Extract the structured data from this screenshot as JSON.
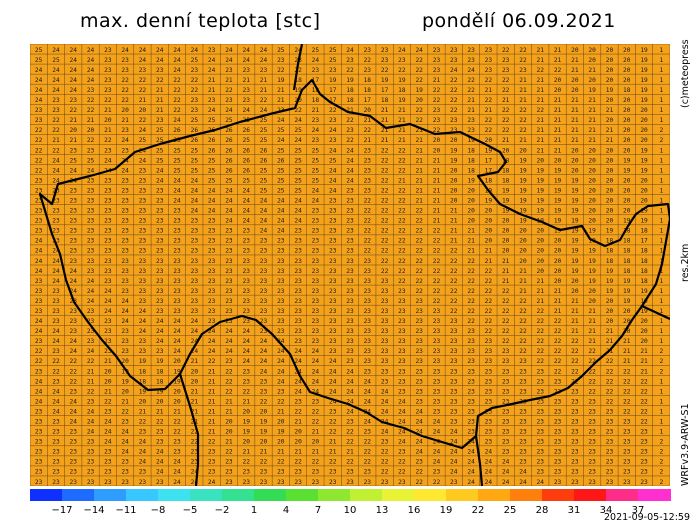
{
  "header": {
    "title": "max. denní teplota [stc]",
    "date": "pondělí 06.09.2021"
  },
  "side_labels": {
    "copyright": "(c)meteopress",
    "resolution": "res.2km",
    "model": "WRFv3.9-ARW-S1"
  },
  "colorbar": {
    "tick_labels": [
      "−17",
      "−14",
      "−11",
      "−8",
      "−5",
      "−2",
      "1",
      "4",
      "7",
      "10",
      "13",
      "16",
      "19",
      "22",
      "25",
      "28",
      "31",
      "34",
      "37"
    ],
    "colors": [
      "#1030ff",
      "#1e6bff",
      "#2f9cff",
      "#38c8ff",
      "#3ce2f0",
      "#39e3c2",
      "#33e190",
      "#32dc55",
      "#5ae030",
      "#8fe830",
      "#bff032",
      "#e8f335",
      "#ffe830",
      "#ffca1f",
      "#ffa812",
      "#ff7f0c",
      "#ff3d0c",
      "#ff1717",
      "#ff2d8a",
      "#ff2fd0"
    ]
  },
  "map": {
    "background": "#f5a21a",
    "grid_color": "#222222",
    "border_color": "#000000",
    "row_values": [
      "25 24 24 24 23 24 24 24 24 24 23 24 24 24 25 24 25 25 24 23 23 24 24 23 23 23 23 22 22 21 21 20 20 20 20 19 1",
      "25 25 24 24 23 23 24 24 24 25 24 24 24 24 23 23 24 25 23 22 23 23 22 23 23 23 23 23 22 21 21 21 20 20 20 19 1",
      "24 24 24 24 23 23 23 23 24 23 24 23 23 23 22 22 23 23 22 23 22 22 22 23 24 24 23 23 23 22 22 21 21 20 20 19 1",
      "24 24 24 24 23 22 22 22 22 22 21 21 21 21 19 18 17 19 19 18 19 19 22 21 22 22 22 22 21 21 20 20 20 20 20 19 1",
      "24 24 24 23 23 22 22 21 22 22 21 22 23 21 21 19 18 17 18 18 17 18 19 22 22 22 21 22 21 21 20 20 19 19 18 19 1",
      "24 23 23 22 22 22 21 21 22 23 23 23 23 22 21 20 18 17 18 17 18 19 20 22 22 21 22 21 21 21 21 21 21 20 20 19 1",
      "23 23 22 22 21 20 20 21 22 23 24 24 24 24 23 22 21 22 21 20 21 21 22 23 22 21 21 22 22 22 21 21 21 21 20 20 1",
      "23 22 21 21 20 21 22 23 24 25 25 25 25 25 24 24 23 23 22 21 21 21 22 23 23 23 22 22 22 21 21 21 21 20 20 20 1",
      "22 22 20 20 21 23 24 25 26 26 26 26 26 25 25 25 24 24 23 22 21 21 21 22 23 23 22 22 22 21 21 21 21 21 20 20 2",
      "22 21 21 22 22 24 25 25 25 26 26 26 25 25 24 24 23 23 22 21 21 21 21 20 20 19 20 21 21 21 21 21 21 21 20 20 2",
      "22 22 23 23 23 23 24 25 25 25 26 26 26 26 25 25 25 24 24 23 22 22 21 20 19 18 19 20 20 21 21 20 20 20 20 19 1",
      "22 24 25 25 24 24 24 25 25 25 25 26 26 26 26 25 25 25 24 23 22 22 21 21 19 18 17 18 19 20 20 20 20 20 19 19 1",
      "22 24 24 24 24 24 23 24 25 25 25 26 26 25 25 25 25 24 24 23 22 22 21 21 20 18 17 18 19 19 19 20 20 20 19 19 1",
      "23 24 24 23 23 23 23 24 24 24 25 25 25 25 25 25 25 24 24 23 22 21 21 21 20 19 18 18 19 19 19 19 20 20 20 20 1",
      "23 23 23 23 23 23 23 23 24 24 24 24 24 25 25 25 24 24 23 23 22 22 21 21 20 20 19 19 19 19 19 19 20 20 20 20 1",
      "23 23 23 23 23 23 23 23 24 24 24 24 24 24 24 24 24 23 23 22 22 22 21 21 20 20 19 19 19 19 19 19 20 20 20 20 1",
      "23 23 23 23 23 23 23 23 23 24 24 24 24 24 24 24 23 23 23 22 22 22 22 21 21 20 20 19 19 19 19 19 20 20 20 19 1",
      "23 23 23 23 23 23 23 23 23 23 23 24 24 24 24 24 23 23 23 22 22 22 22 21 21 20 20 20 19 19 19 19 20 20 19 19 1",
      "23 23 23 23 23 23 23 23 23 23 23 23 23 24 24 23 23 23 23 22 22 22 22 22 21 21 20 20 20 20 19 19 19 19 18 18 1",
      "24 23 23 23 23 23 23 23 23 23 23 23 23 23 23 23 23 23 23 22 22 22 22 22 21 21 20 20 20 20 20 19 19 18 18 17 1",
      "24 24 23 23 23 23 23 23 23 23 23 23 23 23 23 23 23 23 23 22 22 22 22 22 22 21 21 20 20 20 20 19 19 18 18 18 1",
      "24 24 23 23 23 23 23 23 23 23 23 23 23 23 23 23 23 23 23 23 22 22 22 22 22 22 21 21 20 20 20 19 19 18 18 18 1",
      "24 24 24 23 23 23 23 23 23 23 23 23 23 23 23 23 23 23 23 23 22 22 22 22 22 22 22 21 21 20 20 19 19 19 18 18 1",
      "23 24 24 24 23 23 23 23 23 23 23 23 23 23 23 23 23 23 23 23 23 22 22 22 22 22 22 21 21 21 20 20 19 19 19 18 1",
      "23 23 24 24 24 23 23 23 23 23 23 23 23 23 23 23 23 23 23 23 23 23 22 22 22 22 22 22 21 21 21 20 20 19 19 19 1",
      "23 23 23 24 24 24 23 23 23 23 23 23 23 23 23 23 23 23 23 23 23 23 23 22 22 22 22 22 22 21 21 21 20 20 19 19 1",
      "23 23 23 23 24 24 24 23 23 23 23 23 23 23 23 23 23 23 23 23 23 23 23 23 22 22 22 22 22 22 21 21 21 20 20 19 1",
      "24 23 23 23 23 24 24 24 24 24 23 23 23 23 23 23 23 23 23 23 23 23 23 23 23 22 22 22 22 22 22 21 21 20 20 20 1",
      "24 24 23 23 23 23 24 24 24 24 24 24 24 23 23 23 23 23 23 23 23 23 23 23 23 23 22 22 22 22 22 21 21 21 20 20 1",
      "23 24 24 23 23 23 23 24 24 24 24 24 24 24 24 23 23 23 23 23 23 23 23 23 23 23 23 22 22 22 22 22 21 21 21 20 1",
      "22 23 24 24 23 23 23 23 24 24 24 24 24 24 24 24 24 23 23 23 23 23 23 23 23 23 23 23 22 22 22 22 22 21 21 21 2",
      "22 22 22 22 21 20 19 19 20 21 22 23 24 24 24 24 24 24 23 23 23 23 23 23 23 23 23 23 23 22 22 22 22 22 21 21 2",
      "23 22 22 21 20 19 18 18 19 20 21 22 23 24 24 24 24 24 24 23 23 23 23 23 23 23 23 23 23 23 22 22 22 22 22 21 2",
      "24 23 22 21 20 19 18 18 19 20 21 22 23 23 24 24 24 24 24 24 23 23 23 23 23 23 23 23 23 23 23 22 22 22 22 22 1",
      "24 24 23 22 21 20 19 19 20 21 21 22 22 23 23 24 24 24 24 24 24 23 23 23 23 23 23 23 23 23 23 23 22 22 22 22 1",
      "24 24 24 23 22 21 20 20 20 21 21 21 21 22 22 23 23 24 24 24 24 24 23 23 23 23 23 23 23 23 23 23 23 22 22 22 1",
      "23 24 24 24 23 22 21 21 21 21 21 21 20 20 21 22 22 23 24 24 24 24 24 23 23 23 23 23 23 23 23 23 23 23 22 22 1",
      "23 23 24 24 24 23 22 22 22 21 21 20 19 19 20 21 22 22 23 24 24 24 24 24 23 23 23 23 23 23 23 23 23 23 23 22 1",
      "23 23 23 24 24 24 23 23 22 22 21 20 19 19 19 20 21 22 22 23 24 24 24 24 24 23 23 23 23 23 23 23 23 23 23 23 1",
      "23 23 23 23 24 24 24 23 23 22 22 21 20 20 20 20 20 21 22 22 23 24 24 24 24 24 23 23 23 23 23 23 23 23 23 23 2",
      "23 23 23 23 23 24 24 24 23 23 23 22 21 21 21 21 21 21 21 22 22 23 24 24 24 24 24 23 23 23 23 23 23 23 23 23 2",
      "23 23 23 23 23 23 24 24 24 23 23 23 22 22 22 22 22 22 22 22 22 22 23 24 24 24 24 24 23 23 23 23 23 23 23 23 2",
      "23 23 23 23 23 23 23 24 24 24 23 23 23 23 23 23 23 23 23 23 22 22 22 23 24 24 24 24 24 23 23 23 23 23 23 23 2",
      "23 23 23 23 23 23 23 23 24 24 24 23 23 23 23 23 23 23 23 23 23 23 22 22 23 24 24 24 24 24 23 23 23 23 23 23 2"
    ]
  }
}
